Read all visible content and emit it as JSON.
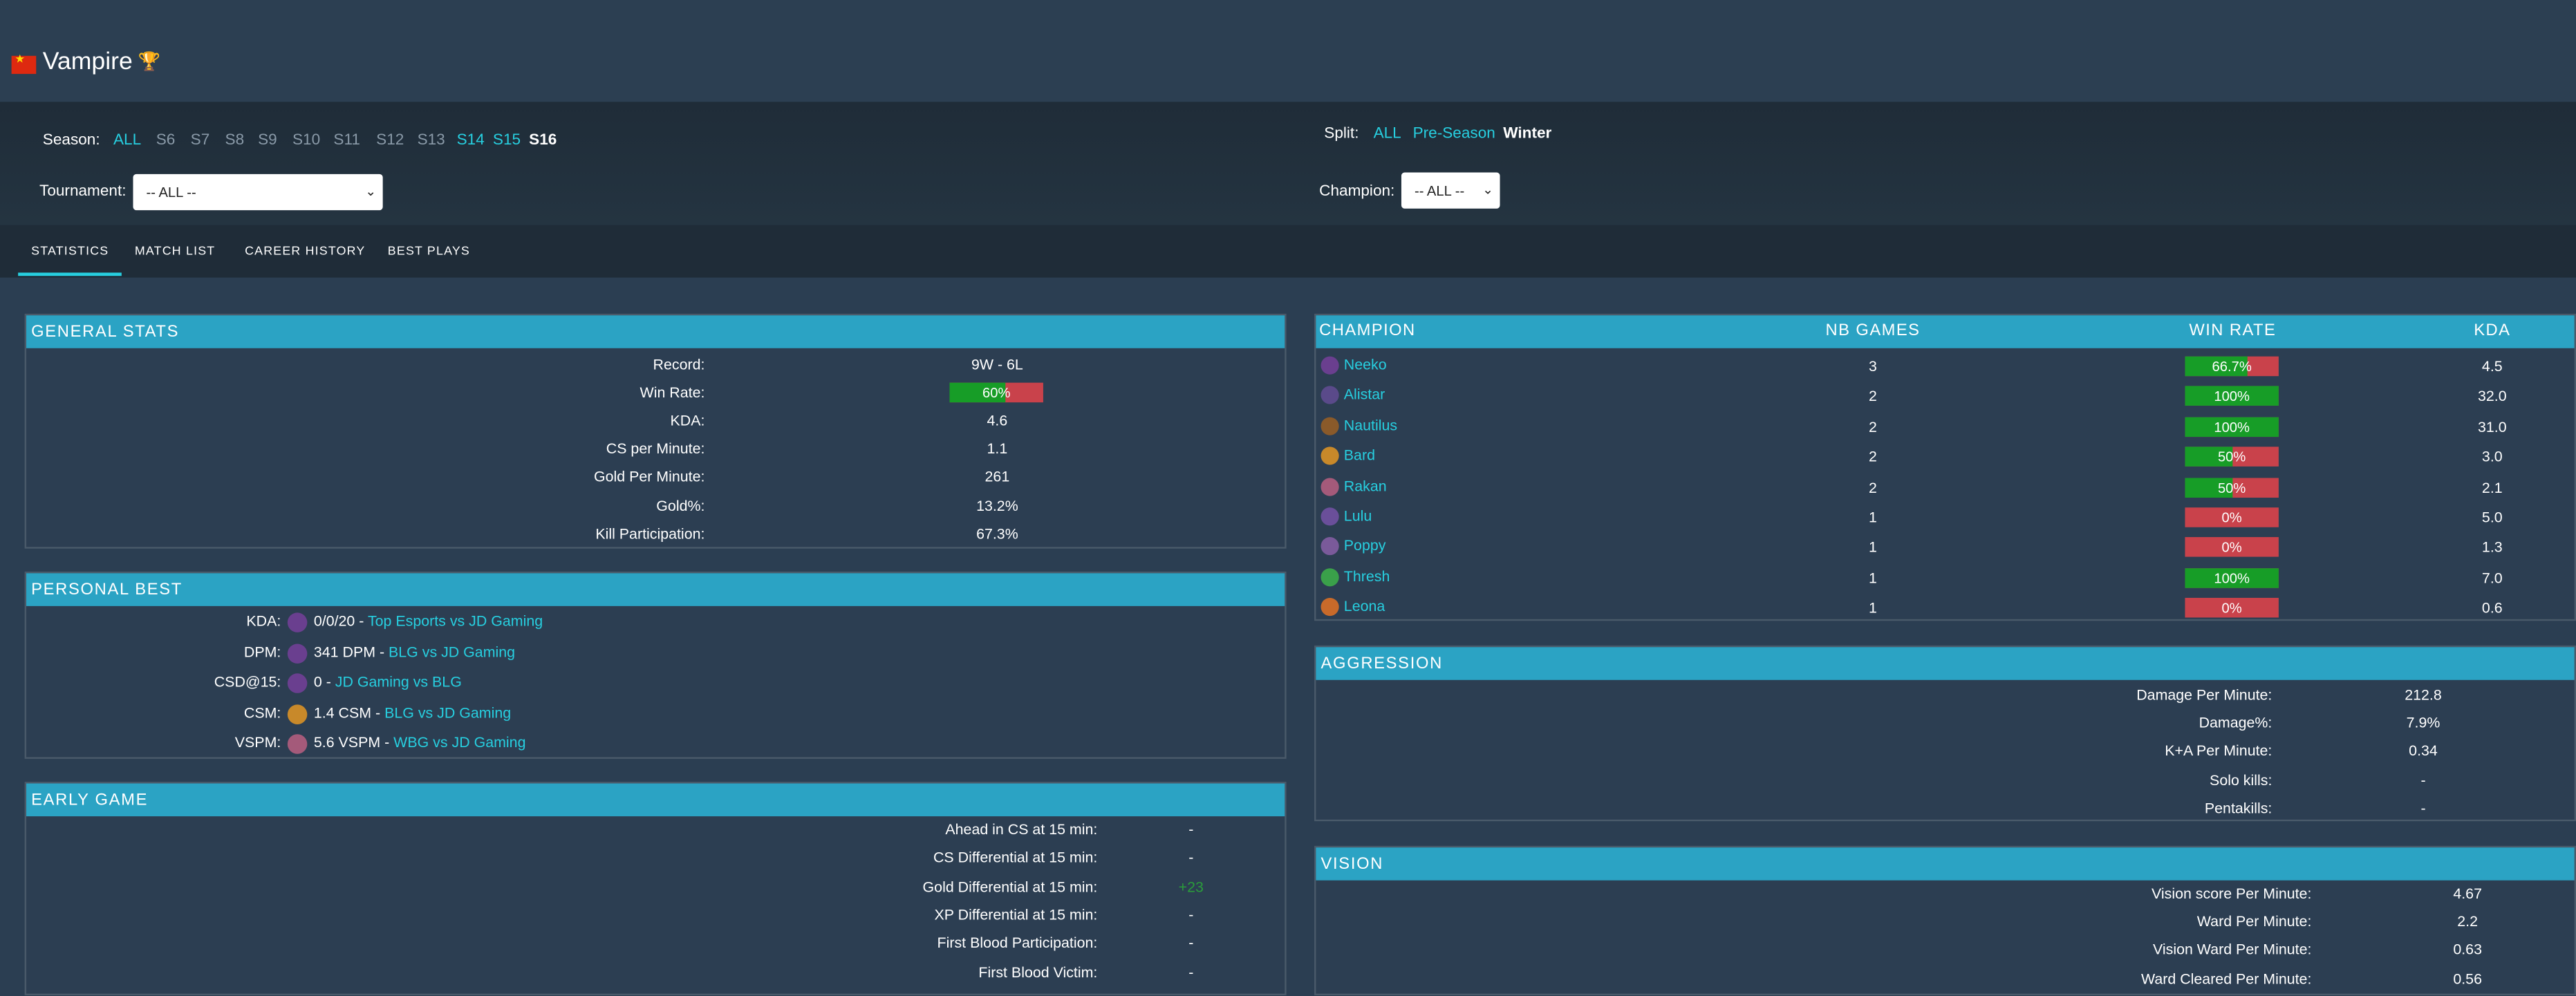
{
  "player": {
    "name": "Vampire",
    "flag_icon": "china-flag-icon",
    "trophy_icon": "trophy-icon"
  },
  "filters": {
    "season_label": "Season:",
    "seasons": [
      "ALL",
      "S6",
      "S7",
      "S8",
      "S9",
      "S10",
      "S11",
      "S12",
      "S13",
      "S14",
      "S15",
      "S16"
    ],
    "split_label": "Split:",
    "splits": [
      "ALL",
      "Pre-Season",
      "Winter"
    ],
    "tournament_label": "Tournament:",
    "tournament_value": "-- ALL --",
    "champion_label": "Champion:",
    "champion_value": "-- ALL --"
  },
  "tabs": [
    "STATISTICS",
    "MATCH LIST",
    "CAREER HISTORY",
    "BEST PLAYS"
  ],
  "general": {
    "title": "GENERAL STATS",
    "rows": [
      {
        "label": "Record:",
        "value": "9W - 6L"
      },
      {
        "label": "Win Rate:",
        "value": "60%",
        "winrate": 0.6
      },
      {
        "label": "KDA:",
        "value": "4.6"
      },
      {
        "label": "CS per Minute:",
        "value": "1.1"
      },
      {
        "label": "Gold Per Minute:",
        "value": "261"
      },
      {
        "label": "Gold%:",
        "value": "13.2%"
      },
      {
        "label": "Kill Participation:",
        "value": "67.3%"
      }
    ]
  },
  "personal_best": {
    "title": "PERSONAL BEST",
    "rows": [
      {
        "label": "KDA:",
        "value": "0/0/20 - ",
        "match": "Top Esports vs JD Gaming",
        "icon": "neeko-icon",
        "color": "#6a3f8f"
      },
      {
        "label": "DPM:",
        "value": "341 DPM - ",
        "match": "BLG vs JD Gaming",
        "icon": "neeko-icon",
        "color": "#6a3f8f"
      },
      {
        "label": "CSD@15:",
        "value": "0 - ",
        "match": "JD Gaming vs BLG",
        "icon": "neeko-icon",
        "color": "#6a3f8f"
      },
      {
        "label": "CSM:",
        "value": "1.4 CSM - ",
        "match": "BLG vs JD Gaming",
        "icon": "bard-icon",
        "color": "#c8892a"
      },
      {
        "label": "VSPM:",
        "value": "5.6 VSPM - ",
        "match": "WBG vs JD Gaming",
        "icon": "rakan-icon",
        "color": "#a45a7a"
      }
    ]
  },
  "early_game": {
    "title": "EARLY GAME",
    "rows": [
      {
        "label": "Ahead in CS at 15 min:",
        "value": "-"
      },
      {
        "label": "CS Differential at 15 min:",
        "value": "-"
      },
      {
        "label": "Gold Differential at 15 min:",
        "value": "+23",
        "color": "#2a9d3a"
      },
      {
        "label": "XP Differential at 15 min:",
        "value": "-"
      },
      {
        "label": "First Blood Participation:",
        "value": "-"
      },
      {
        "label": "First Blood Victim:",
        "value": "-"
      }
    ]
  },
  "champions": {
    "headers": [
      "CHAMPION",
      "NB GAMES",
      "WIN RATE",
      "KDA"
    ],
    "rows": [
      {
        "name": "Neeko",
        "games": "3",
        "winrate": "66.7%",
        "wr": 0.667,
        "kda": "4.5",
        "icon": "neeko-icon",
        "color": "#6a3f8f"
      },
      {
        "name": "Alistar",
        "games": "2",
        "winrate": "100%",
        "wr": 1,
        "kda": "32.0",
        "icon": "alistar-icon",
        "color": "#5a4a8a"
      },
      {
        "name": "Nautilus",
        "games": "2",
        "winrate": "100%",
        "wr": 1,
        "kda": "31.0",
        "icon": "nautilus-icon",
        "color": "#8a5a2a"
      },
      {
        "name": "Bard",
        "games": "2",
        "winrate": "50%",
        "wr": 0.5,
        "kda": "3.0",
        "icon": "bard-icon",
        "color": "#c8892a"
      },
      {
        "name": "Rakan",
        "games": "2",
        "winrate": "50%",
        "wr": 0.5,
        "kda": "2.1",
        "icon": "rakan-icon",
        "color": "#a45a7a"
      },
      {
        "name": "Lulu",
        "games": "1",
        "winrate": "0%",
        "wr": 0,
        "kda": "5.0",
        "icon": "lulu-icon",
        "color": "#6a4f9a"
      },
      {
        "name": "Poppy",
        "games": "1",
        "winrate": "0%",
        "wr": 0,
        "kda": "1.3",
        "icon": "poppy-icon",
        "color": "#7a5a9a"
      },
      {
        "name": "Thresh",
        "games": "1",
        "winrate": "100%",
        "wr": 1,
        "kda": "7.0",
        "icon": "thresh-icon",
        "color": "#3aa04a"
      },
      {
        "name": "Leona",
        "games": "1",
        "winrate": "0%",
        "wr": 0,
        "kda": "0.6",
        "icon": "leona-icon",
        "color": "#c86a2a"
      }
    ]
  },
  "aggression": {
    "title": "AGGRESSION",
    "rows": [
      {
        "label": "Damage Per Minute:",
        "value": "212.8"
      },
      {
        "label": "Damage%:",
        "value": "7.9%"
      },
      {
        "label": "K+A Per Minute:",
        "value": "0.34"
      },
      {
        "label": "Solo kills:",
        "value": "-"
      },
      {
        "label": "Pentakills:",
        "value": "-"
      }
    ]
  },
  "vision": {
    "title": "VISION",
    "rows": [
      {
        "label": "Vision score Per Minute:",
        "value": "4.67"
      },
      {
        "label": "Ward Per Minute:",
        "value": "2.2"
      },
      {
        "label": "Vision Ward Per Minute:",
        "value": "0.63"
      },
      {
        "label": "Ward Cleared Per Minute:",
        "value": "0.56"
      }
    ]
  }
}
